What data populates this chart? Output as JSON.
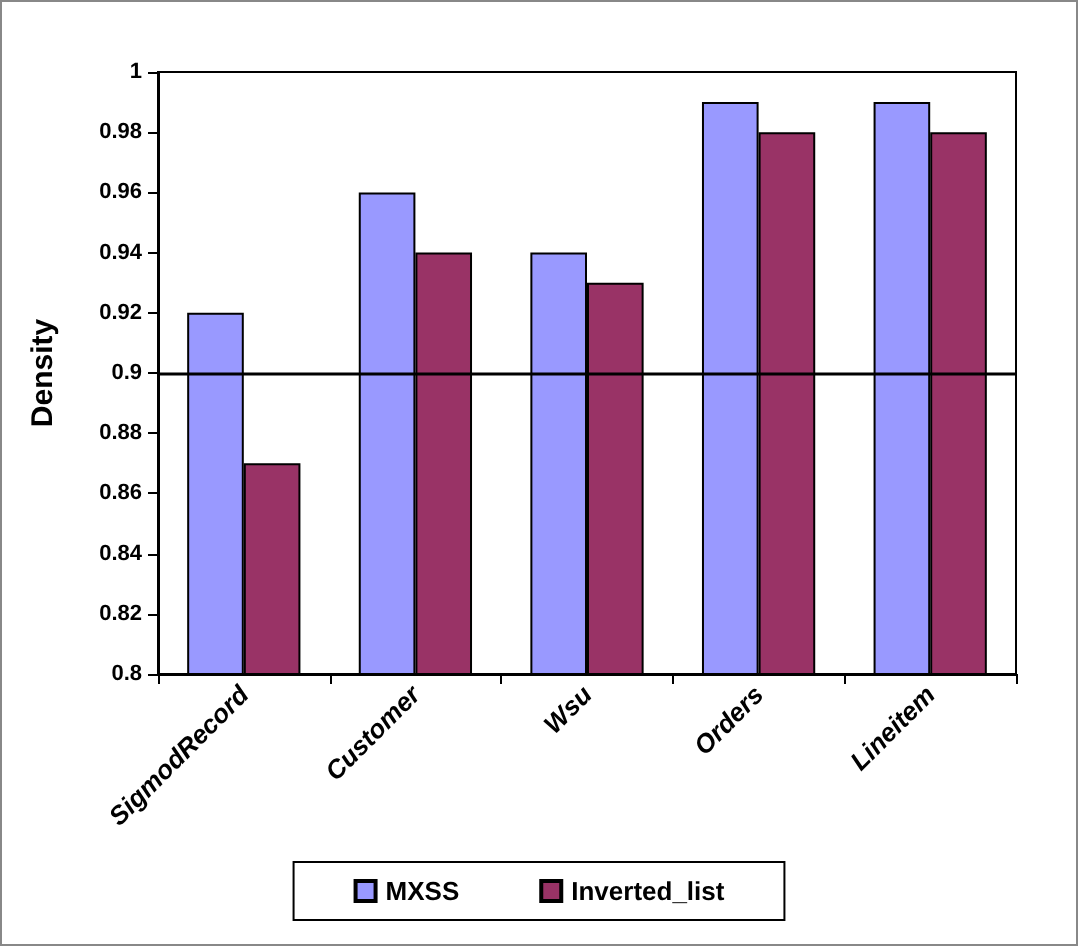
{
  "chart_data": {
    "type": "bar",
    "ylabel": "Density",
    "categories": [
      "SigmodRecord",
      "Customer",
      "Wsu",
      "Orders",
      "Lineitem"
    ],
    "series": [
      {
        "name": "MXSS",
        "color": "#9999ff",
        "values": [
          0.92,
          0.96,
          0.94,
          0.99,
          0.99
        ]
      },
      {
        "name": "Inverted_list",
        "color": "#993366",
        "values": [
          0.87,
          0.94,
          0.93,
          0.98,
          0.98
        ]
      }
    ],
    "ylim": [
      0.8,
      1
    ],
    "yticks": [
      0.8,
      0.82,
      0.84,
      0.86,
      0.88,
      0.9,
      0.92,
      0.94,
      0.96,
      0.98,
      1
    ],
    "ref_lines": [
      {
        "axis": "y",
        "value": 0.9,
        "color": "#000000"
      }
    ],
    "legend": "bottom",
    "grid": false
  }
}
